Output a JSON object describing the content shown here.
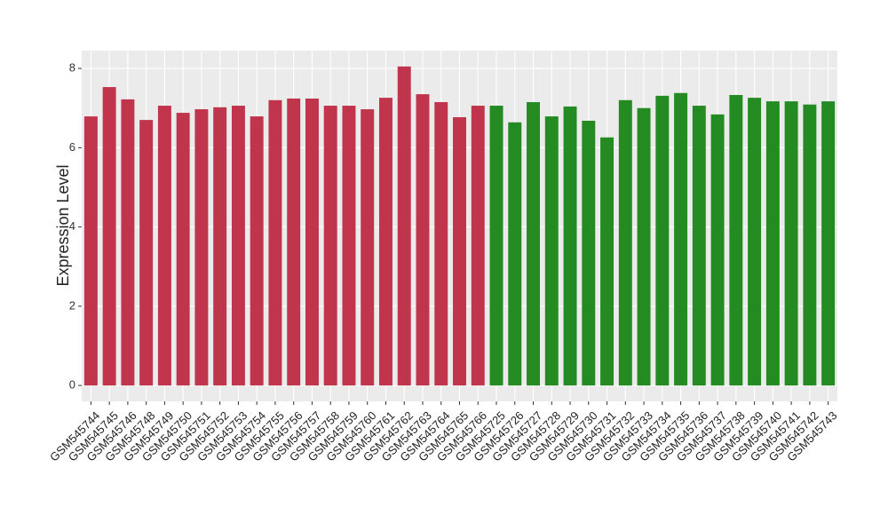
{
  "chart_data": {
    "type": "bar",
    "y_label": "Expression Level",
    "categories": [
      "GSM545744",
      "GSM545745",
      "GSM545746",
      "GSM545748",
      "GSM545749",
      "GSM545750",
      "GSM545751",
      "GSM545752",
      "GSM545753",
      "GSM545754",
      "GSM545755",
      "GSM545756",
      "GSM545757",
      "GSM545758",
      "GSM545759",
      "GSM545760",
      "GSM545761",
      "GSM545762",
      "GSM545763",
      "GSM545764",
      "GSM545765",
      "GSM545766",
      "GSM545725",
      "GSM545726",
      "GSM545727",
      "GSM545728",
      "GSM545729",
      "GSM545730",
      "GSM545731",
      "GSM545732",
      "GSM545733",
      "GSM545734",
      "GSM545735",
      "GSM545736",
      "GSM545737",
      "GSM545738",
      "GSM545739",
      "GSM545740",
      "GSM545741",
      "GSM545742",
      "GSM545743"
    ],
    "values": [
      6.79,
      7.53,
      7.22,
      6.7,
      7.06,
      6.88,
      6.97,
      7.02,
      7.06,
      6.79,
      7.2,
      7.24,
      7.24,
      7.06,
      7.06,
      6.97,
      7.26,
      8.05,
      7.35,
      7.15,
      6.77,
      7.06,
      7.06,
      6.64,
      7.15,
      6.79,
      7.04,
      6.68,
      6.26,
      7.2,
      7.0,
      7.31,
      7.38,
      7.06,
      6.84,
      7.33,
      7.26,
      7.17,
      7.17,
      7.09,
      7.17
    ],
    "colors": [
      "#c0344c",
      "#c0344c",
      "#c0344c",
      "#c0344c",
      "#c0344c",
      "#c0344c",
      "#c0344c",
      "#c0344c",
      "#c0344c",
      "#c0344c",
      "#c0344c",
      "#c0344c",
      "#c0344c",
      "#c0344c",
      "#c0344c",
      "#c0344c",
      "#c0344c",
      "#c0344c",
      "#c0344c",
      "#c0344c",
      "#c0344c",
      "#c0344c",
      "#238b22",
      "#238b22",
      "#238b22",
      "#238b22",
      "#238b22",
      "#238b22",
      "#238b22",
      "#238b22",
      "#238b22",
      "#238b22",
      "#238b22",
      "#238b22",
      "#238b22",
      "#238b22",
      "#238b22",
      "#238b22",
      "#238b22",
      "#238b22",
      "#238b22"
    ],
    "ylim": [
      -0.4,
      8.45
    ],
    "yticks": [
      0,
      2,
      4,
      6,
      8
    ],
    "grid": true
  }
}
